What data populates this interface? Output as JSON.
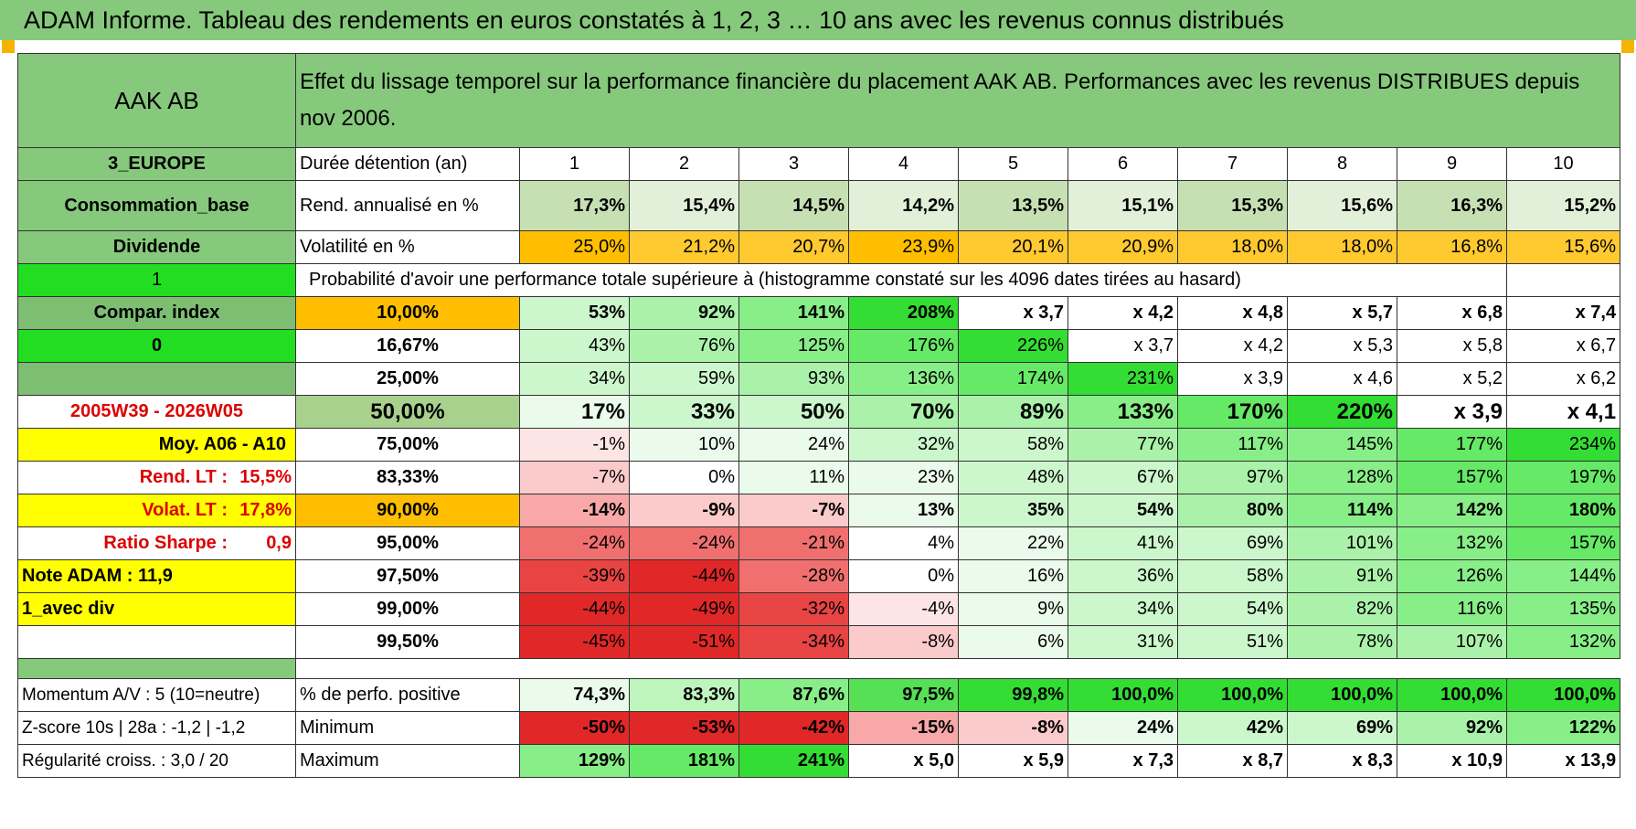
{
  "title": "ADAM Informe. Tableau des rendements en euros constatés à 1, 2, 3 … 10 ans avec les revenus connus distribués",
  "colors": {
    "header_green": "#86c97c",
    "bright_green": "#22dd22",
    "yellow": "#ffff00",
    "orange": "#ffbf00",
    "red_text": "#dd0000",
    "light_green": "#c6e0b4"
  },
  "sidebar": {
    "name": "AAK AB",
    "region": "3_EUROPE",
    "sector": "Consommation_base",
    "dividend": "Dividende",
    "option_1": "1",
    "compar_index": "Compar. index",
    "option_0": "0",
    "period": "2005W39 - 2026W05",
    "moy_label": "Moy. A06 - A10",
    "rend_lt_label": "Rend. LT :",
    "rend_lt_value": "15,5%",
    "volat_lt_label": "Volat. LT :",
    "volat_lt_value": "17,8%",
    "sharpe_label": "Ratio Sharpe :",
    "sharpe_value": "0,9",
    "note_adam": "Note ADAM : 11,9",
    "avec_div": "1_avec div",
    "momentum": "Momentum A/V : 5 (10=neutre)",
    "zscore": "Z-score 10s | 28a : -1,2 | -1,2",
    "regularite": "Régularité croiss. : 3,0 / 20"
  },
  "header_text": "Effet du lissage temporel sur la performance financière du placement AAK AB. Performances avec les revenus DISTRIBUES depuis nov 2006.",
  "duration_label": "Durée détention (an)",
  "years": [
    "1",
    "2",
    "3",
    "4",
    "5",
    "6",
    "7",
    "8",
    "9",
    "10"
  ],
  "rend_label": "Rend. annualisé en %",
  "rend_values": [
    "17,3%",
    "15,4%",
    "14,5%",
    "14,2%",
    "13,5%",
    "15,1%",
    "15,3%",
    "15,6%",
    "16,3%",
    "15,2%"
  ],
  "vol_label": "Volatilité en %",
  "vol_values": [
    "25,0%",
    "21,2%",
    "20,7%",
    "23,9%",
    "20,1%",
    "20,9%",
    "18,0%",
    "18,0%",
    "16,8%",
    "15,6%"
  ],
  "prob_label": "Probabilité d'avoir une performance totale supérieure à (histogramme constaté sur les 4096 dates tirées au hasard)",
  "prob_rows": [
    {
      "pct": "10,00%",
      "values": [
        "53%",
        "92%",
        "141%",
        "208%",
        "x 3,7",
        "x 4,2",
        "x 4,8",
        "x 5,7",
        "x 6,8",
        "x 7,4"
      ]
    },
    {
      "pct": "16,67%",
      "values": [
        "43%",
        "76%",
        "125%",
        "176%",
        "226%",
        "x 3,7",
        "x 4,2",
        "x 5,3",
        "x 5,8",
        "x 6,7"
      ]
    },
    {
      "pct": "25,00%",
      "values": [
        "34%",
        "59%",
        "93%",
        "136%",
        "174%",
        "231%",
        "x 3,9",
        "x 4,6",
        "x 5,2",
        "x 6,2"
      ]
    },
    {
      "pct": "50,00%",
      "values": [
        "17%",
        "33%",
        "50%",
        "70%",
        "89%",
        "133%",
        "170%",
        "220%",
        "x 3,9",
        "x 4,1"
      ]
    },
    {
      "pct": "75,00%",
      "values": [
        "-1%",
        "10%",
        "24%",
        "32%",
        "58%",
        "77%",
        "117%",
        "145%",
        "177%",
        "234%"
      ]
    },
    {
      "pct": "83,33%",
      "values": [
        "-7%",
        "0%",
        "11%",
        "23%",
        "48%",
        "67%",
        "97%",
        "128%",
        "157%",
        "197%"
      ]
    },
    {
      "pct": "90,00%",
      "values": [
        "-14%",
        "-9%",
        "-7%",
        "13%",
        "35%",
        "54%",
        "80%",
        "114%",
        "142%",
        "180%"
      ]
    },
    {
      "pct": "95,00%",
      "values": [
        "-24%",
        "-24%",
        "-21%",
        "4%",
        "22%",
        "41%",
        "69%",
        "101%",
        "132%",
        "157%"
      ]
    },
    {
      "pct": "97,50%",
      "values": [
        "-39%",
        "-44%",
        "-28%",
        "0%",
        "16%",
        "36%",
        "58%",
        "91%",
        "126%",
        "144%"
      ]
    },
    {
      "pct": "99,00%",
      "values": [
        "-44%",
        "-49%",
        "-32%",
        "-4%",
        "9%",
        "34%",
        "54%",
        "82%",
        "116%",
        "135%"
      ]
    },
    {
      "pct": "99,50%",
      "values": [
        "-45%",
        "-51%",
        "-34%",
        "-8%",
        "6%",
        "31%",
        "51%",
        "78%",
        "107%",
        "132%"
      ]
    }
  ],
  "pos_label": "% de perfo. positive",
  "pos_values": [
    "74,3%",
    "83,3%",
    "87,6%",
    "97,5%",
    "99,8%",
    "100,0%",
    "100,0%",
    "100,0%",
    "100,0%",
    "100,0%"
  ],
  "min_label": "Minimum",
  "min_values": [
    "-50%",
    "-53%",
    "-42%",
    "-15%",
    "-8%",
    "24%",
    "42%",
    "69%",
    "92%",
    "122%"
  ],
  "max_label": "Maximum",
  "max_values": [
    "129%",
    "181%",
    "241%",
    "x 5,0",
    "x 5,9",
    "x 7,3",
    "x 8,7",
    "x 8,3",
    "x 10,9",
    "x 13,9"
  ]
}
